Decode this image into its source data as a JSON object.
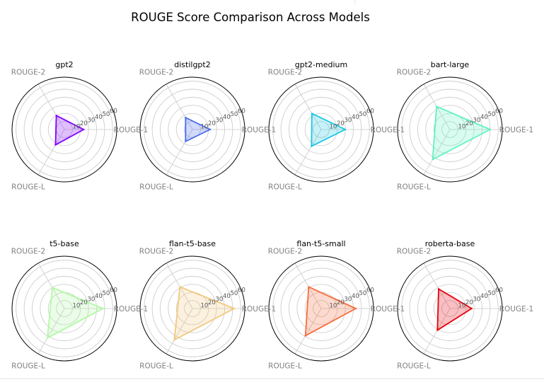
{
  "chart_data": {
    "type": "radar",
    "title": "ROUGE Score Comparison Across Models",
    "axes": [
      "ROUGE-1",
      "ROUGE-2",
      "ROUGE-L"
    ],
    "rlim": [
      0,
      65
    ],
    "rticks": [
      10,
      20,
      30,
      40,
      50,
      60
    ],
    "grid": true,
    "panels": [
      {
        "title": "gpt2",
        "values": [
          24,
          20,
          22
        ],
        "color": "#7f00ff"
      },
      {
        "title": "distilgpt2",
        "values": [
          22,
          17,
          17
        ],
        "color": "#4a6cf0"
      },
      {
        "title": "gpt2-medium",
        "values": [
          30,
          23,
          24
        ],
        "color": "#1ac7e3"
      },
      {
        "title": "bart-large",
        "values": [
          50,
          33,
          43
        ],
        "color": "#62f2c2"
      },
      {
        "title": "t5-base",
        "values": [
          48,
          30,
          42
        ],
        "color": "#b0f9a4"
      },
      {
        "title": "flan-t5-base",
        "values": [
          52,
          31,
          45
        ],
        "color": "#f2c87e"
      },
      {
        "title": "flan-t5-small",
        "values": [
          43,
          31,
          39
        ],
        "color": "#f86c3c"
      },
      {
        "title": "roberta-base",
        "values": [
          27,
          28,
          31
        ],
        "color": "#e8000b"
      }
    ]
  }
}
